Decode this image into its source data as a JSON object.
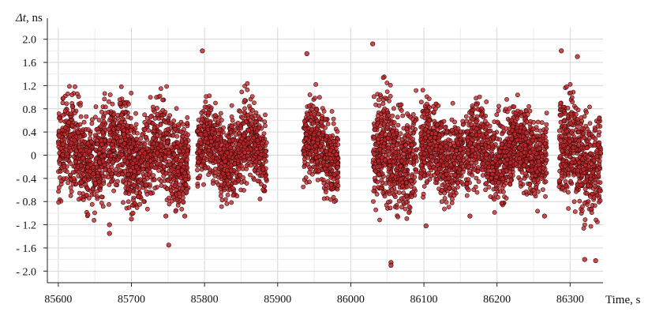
{
  "chart_data": {
    "type": "scatter",
    "ylabel_italic": "Δt",
    "ylabel_rest": ", ns",
    "xlabel": "Time, s",
    "xlim": [
      85585,
      86345
    ],
    "ylim": [
      -2.2,
      2.2
    ],
    "xticks": [
      85600,
      85700,
      85800,
      85900,
      86000,
      86100,
      86200,
      86300
    ],
    "xtick_labels": [
      "85600",
      "85700",
      "85800",
      "85900",
      "86000",
      "86100",
      "86200",
      "86300"
    ],
    "yticks": [
      2.0,
      1.6,
      1.2,
      0.8,
      0.4,
      0,
      -0.4,
      -0.8,
      -1.2,
      -1.6,
      -2.0
    ],
    "ytick_labels": [
      "2.0",
      "1.6",
      "1.2",
      "0.8",
      "0.4",
      "0",
      "- 0.4",
      "- 0.8",
      "- 1.2",
      "- 1.6",
      "- 2.0"
    ],
    "grid": true,
    "marker_color": "#c0282b",
    "marker_edge": "#3a0606",
    "clusters": [
      {
        "x": [
          85600,
          85665
        ],
        "y": [
          -1.5,
          1.7
        ]
      },
      {
        "x": [
          85668,
          85778
        ],
        "y": [
          -1.4,
          1.7
        ]
      },
      {
        "x": [
          85790,
          85885
        ],
        "y": [
          -0.9,
          1.8
        ]
      },
      {
        "x": [
          85935,
          85983
        ],
        "y": [
          -0.8,
          1.75
        ]
      },
      {
        "x": [
          86030,
          86090
        ],
        "y": [
          -1.9,
          1.9
        ]
      },
      {
        "x": [
          86095,
          86155
        ],
        "y": [
          -1.2,
          1.6
        ]
      },
      {
        "x": [
          86158,
          86268
        ],
        "y": [
          -1.1,
          1.7
        ]
      },
      {
        "x": [
          86285,
          86342
        ],
        "y": [
          -1.8,
          1.8
        ]
      }
    ],
    "outliers": [
      {
        "x": 85670,
        "y": -1.2
      },
      {
        "x": 85670,
        "y": -1.35
      },
      {
        "x": 85700,
        "y": -1.1
      },
      {
        "x": 85702,
        "y": -1.0
      },
      {
        "x": 85751,
        "y": -1.55
      },
      {
        "x": 85747,
        "y": -1.05
      },
      {
        "x": 85773,
        "y": -1.05
      },
      {
        "x": 85940,
        "y": 1.75
      },
      {
        "x": 86030,
        "y": 1.92
      },
      {
        "x": 86055,
        "y": -1.85
      },
      {
        "x": 86055,
        "y": -1.9
      },
      {
        "x": 86103,
        "y": -1.22
      },
      {
        "x": 86163,
        "y": -1.05
      },
      {
        "x": 86265,
        "y": -1.05
      },
      {
        "x": 86310,
        "y": 1.7
      },
      {
        "x": 86320,
        "y": -1.8
      },
      {
        "x": 86335,
        "y": -1.82
      },
      {
        "x": 86288,
        "y": 1.8
      },
      {
        "x": 85797,
        "y": 1.8
      }
    ]
  }
}
